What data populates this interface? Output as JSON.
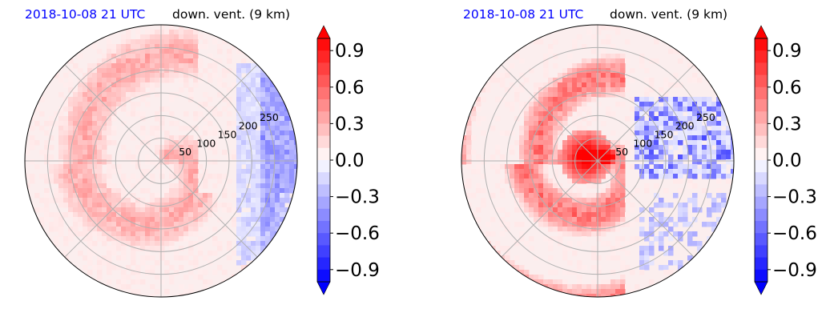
{
  "chart_data": [
    {
      "type": "heatmap",
      "projection": "polar",
      "title_left": "2018-10-08 21 UTC",
      "title_right": "down. vent. (9 km)",
      "title_left_color": "#0000ff",
      "radial_ticks": [
        "50",
        "100",
        "150",
        "200",
        "250"
      ],
      "radial_values": [
        50,
        100,
        150,
        200,
        250
      ],
      "rmax": 300,
      "grid": true,
      "colormap": "bwr",
      "color_range": [
        -1.0,
        1.0
      ],
      "colorbar_ticks": [
        "0.9",
        "0.6",
        "0.3",
        "0.0",
        "−0.3",
        "−0.6",
        "−0.9"
      ],
      "colorbar_values": [
        0.9,
        0.6,
        0.3,
        0.0,
        -0.3,
        -0.6,
        -0.9
      ],
      "colorbar_extend": "both"
    },
    {
      "type": "heatmap",
      "projection": "polar",
      "title_left": "2018-10-08 21 UTC",
      "title_right": "down. vent. (9 km)",
      "title_left_color": "#0000ff",
      "radial_ticks": [
        "50",
        "100",
        "150",
        "200",
        "250"
      ],
      "radial_values": [
        50,
        100,
        150,
        200,
        250
      ],
      "rmax": 300,
      "grid": true,
      "colormap": "bwr",
      "color_range": [
        -1.0,
        1.0
      ],
      "colorbar_ticks": [
        "0.9",
        "0.6",
        "0.3",
        "0.0",
        "−0.3",
        "−0.6",
        "−0.9"
      ],
      "colorbar_values": [
        0.9,
        0.6,
        0.3,
        0.0,
        -0.3,
        -0.6,
        -0.9
      ],
      "colorbar_extend": "both"
    }
  ],
  "colors": {
    "positive": "#ff0000",
    "negative": "#0000ff",
    "neutral": "#ffffff",
    "grid": "#b0b0b0"
  }
}
